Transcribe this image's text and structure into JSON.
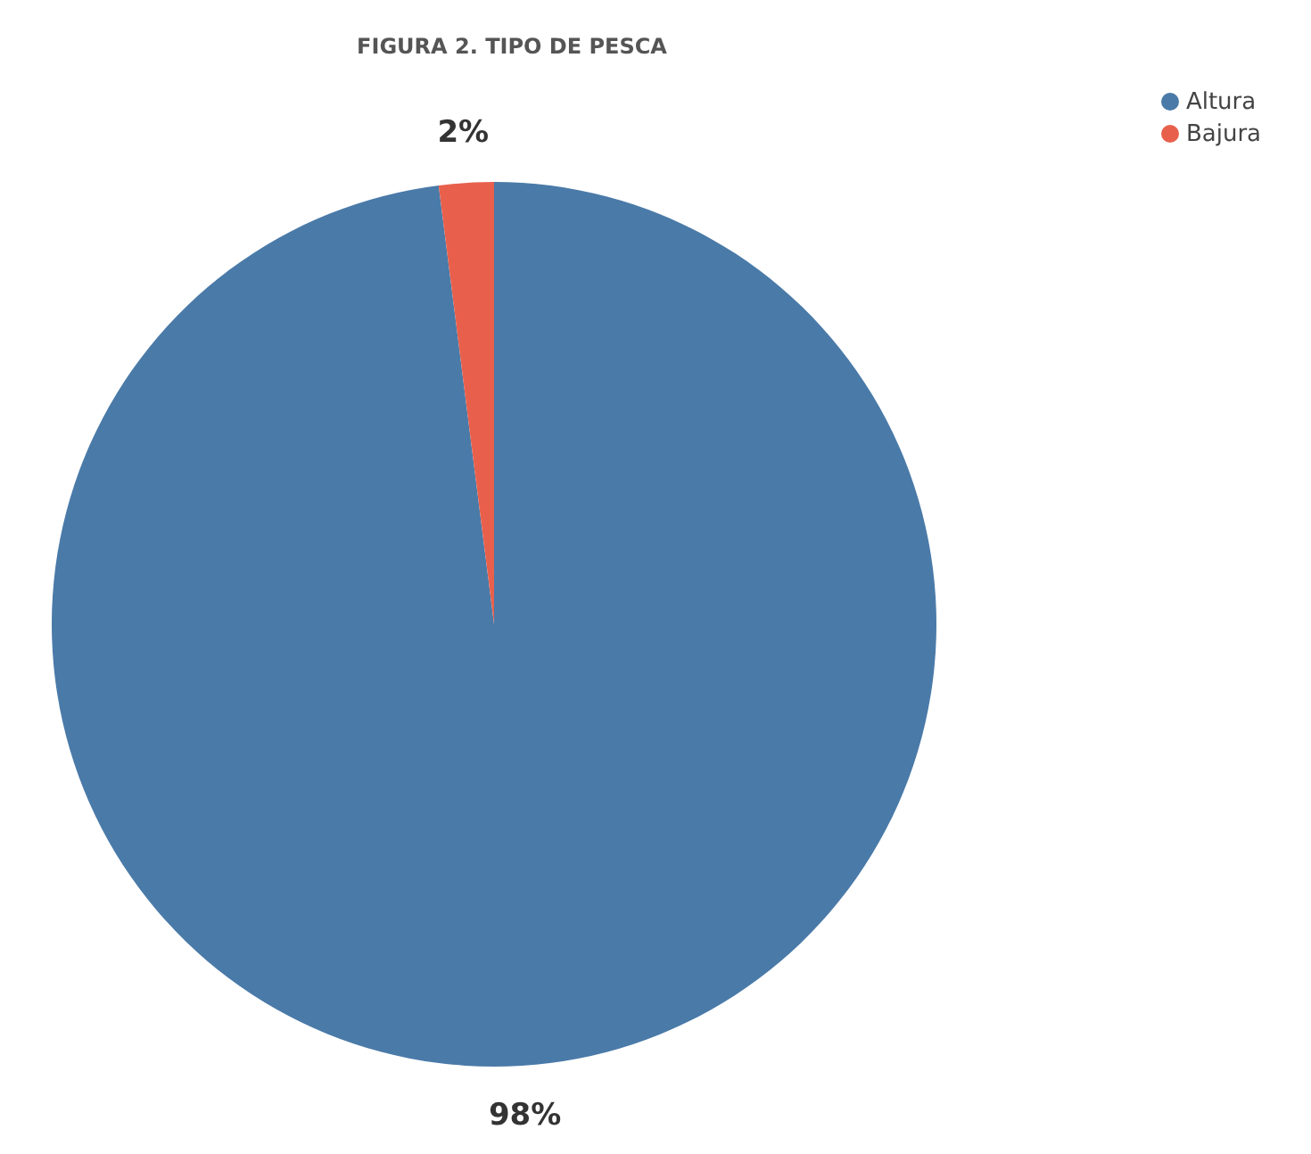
{
  "chart_data": {
    "type": "pie",
    "title": "FIGURA 2. TIPO DE PESCA",
    "categories": [
      "Altura",
      "Bajura"
    ],
    "values": [
      98,
      2
    ],
    "colors": [
      "#4a7aa8",
      "#e8604c"
    ],
    "value_labels": [
      "98%",
      "2%"
    ],
    "legend": "top right"
  }
}
